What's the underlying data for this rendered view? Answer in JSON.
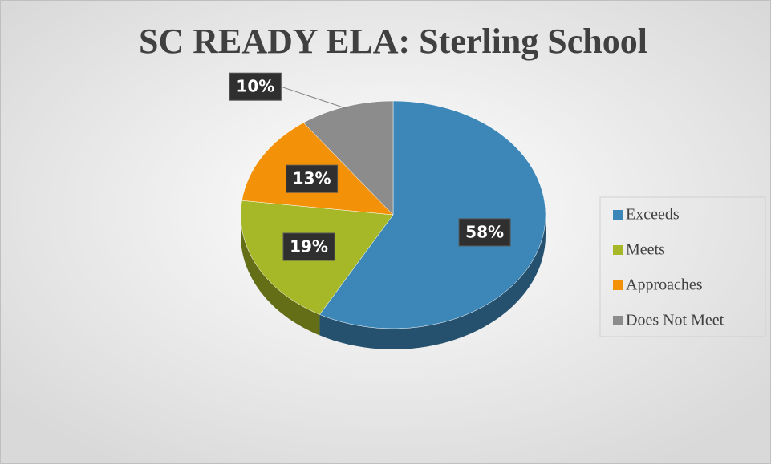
{
  "chart_data": {
    "type": "pie",
    "title": "SC READY ELA: Sterling School",
    "categories": [
      "Exceeds",
      "Meets",
      "Approaches",
      "Does Not Meet"
    ],
    "values": [
      58,
      19,
      13,
      10
    ],
    "value_labels": [
      "58%",
      "19%",
      "13%",
      "10%"
    ],
    "colors": [
      "#3d87b8",
      "#a6b827",
      "#f39208",
      "#8c8c8c"
    ],
    "legend": "right"
  }
}
